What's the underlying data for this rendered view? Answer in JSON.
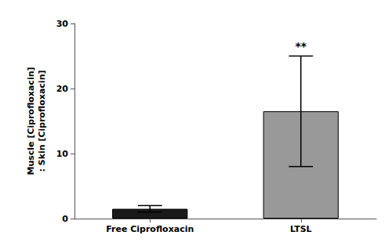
{
  "chart_data": {
    "type": "bar",
    "categories": [
      "Free Ciprofloxacin",
      "LTSL"
    ],
    "values": [
      1.5,
      16.5
    ],
    "errors": [
      0.5,
      8.5
    ],
    "colors": [
      "#1a1a1a",
      "#999999"
    ],
    "ylabel": "Muscle [Ciprofloxacin]\n: Skin [Ciprofloxacin]",
    "ylim": [
      0,
      30
    ],
    "yticks": [
      0,
      10,
      20,
      30
    ],
    "grid": false,
    "annotations": [
      {
        "text": "**",
        "category": "LTSL"
      }
    ]
  }
}
